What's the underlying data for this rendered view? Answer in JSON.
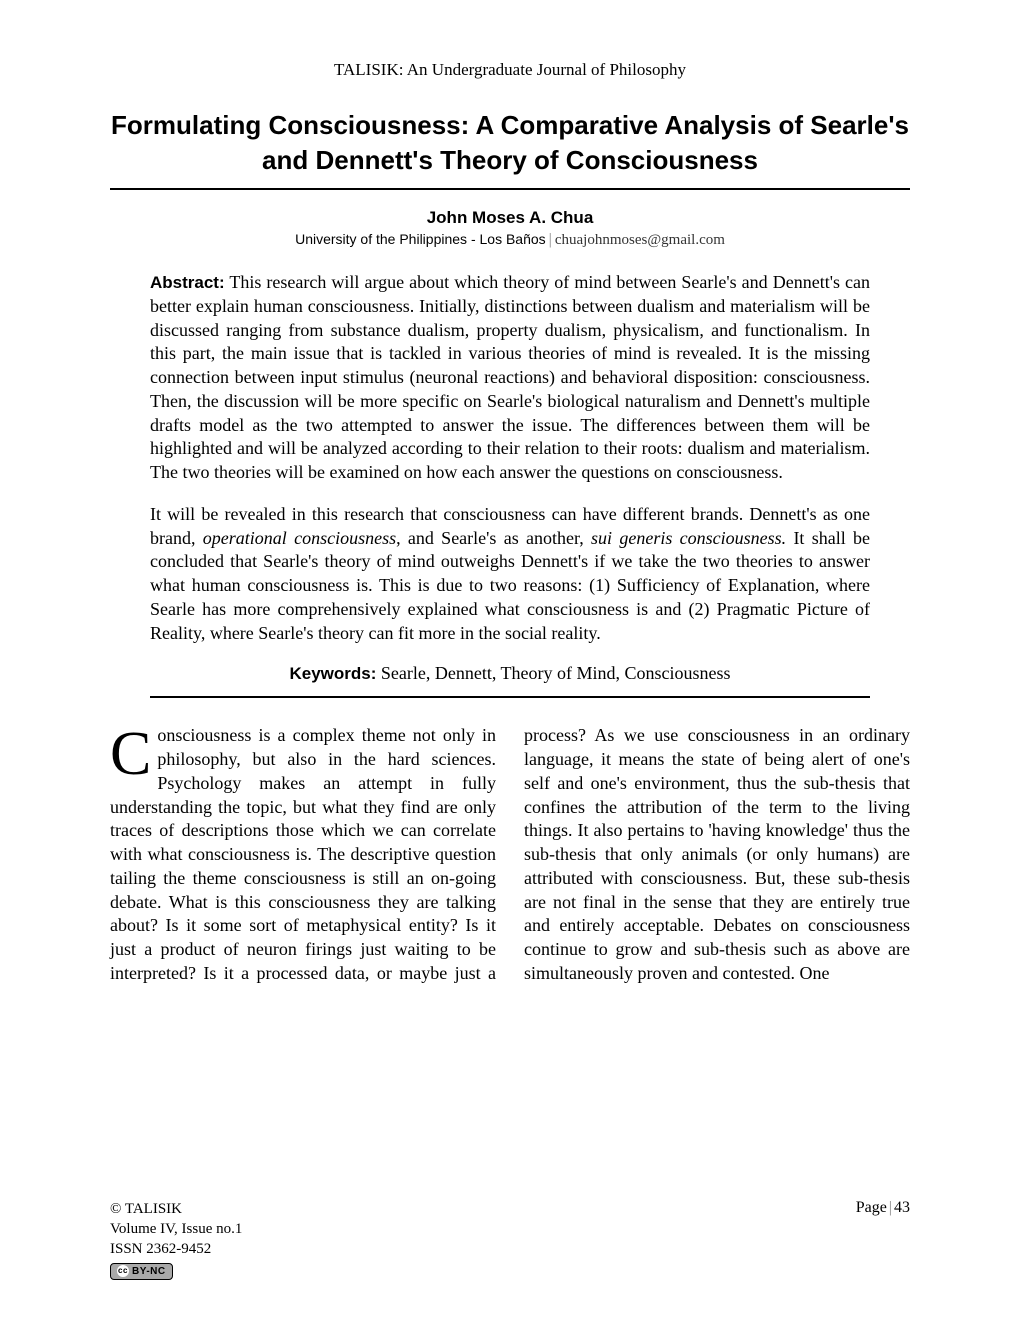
{
  "running_header": "TALISIK: An Undergraduate Journal of Philosophy",
  "title": "Formulating Consciousness: A Comparative Analysis of Searle's and Dennett's Theory of Consciousness",
  "author": {
    "name": "John Moses A. Chua",
    "affiliation": "University of the Philippines - Los Baños",
    "email": "chuajohnmoses@gmail.com"
  },
  "abstract": {
    "label": "Abstract:",
    "para1_html": "This research will argue about which theory of mind between Searle's and Dennett's can better explain human consciousness. Initially, distinctions between dualism and materialism will be discussed ranging from substance dualism, property dualism, physicalism, and functionalism. In this part, the main issue that is tackled in various theories of mind is revealed. It is the missing connection between input stimulus (neuronal reactions) and behavioral disposition: consciousness. Then, the discussion will be more specific on Searle's biological naturalism and Dennett's multiple drafts model as the two attempted to answer the issue. The differences between them will be highlighted and will be analyzed according to their relation to their roots: dualism and materialism. The two theories will be examined on how each answer the questions on consciousness.",
    "para2_html": "It will be revealed in this research that consciousness can have different brands. Dennett's as one brand, <em>operational consciousness</em>, and Searle's as another, <em>sui generis consciousness.</em> It shall be concluded that Searle's theory of mind outweighs Dennett's if we take the two theories to answer what human consciousness is. This is due to two reasons: (1) Sufficiency of Explanation, where Searle has more comprehensively explained what consciousness is and (2) Pragmatic Picture of Reality, where Searle's theory can fit more in the social reality."
  },
  "keywords": {
    "label": "Keywords:",
    "text": "Searle, Dennett, Theory of Mind, Consciousness"
  },
  "body": {
    "dropcap": "C",
    "col_text": "onsciousness is a complex theme not only in philosophy, but also in the hard sciences. Psychology makes an attempt in fully understanding the topic, but what they find are only traces of descriptions those which we can correlate with what consciousness is. The descriptive question tailing the theme consciousness is still an on-going debate. What is this consciousness they are talking about? Is it some sort of metaphysical entity? Is it just a product of neuron firings just waiting to be interpreted? Is it a processed data, or maybe just a process? As we use consciousness in an ordinary language, it means the state of being alert of one's self and one's environment, thus the sub-thesis that confines the attribution of the term to the living things. It also pertains to 'having knowledge' thus the sub-thesis that only animals (or only humans) are attributed with consciousness. But, these sub-thesis are not final in the sense that they are entirely true and entirely acceptable. Debates on consciousness continue to grow and sub-thesis such as above are simultaneously proven and contested. One"
  },
  "footer": {
    "copyright": "© TALISIK",
    "volume": "Volume IV, Issue no.1",
    "issn": "ISSN 2362-9452",
    "cc_label": "CC BY-NC",
    "page_label": "Page",
    "page_number": "43"
  }
}
